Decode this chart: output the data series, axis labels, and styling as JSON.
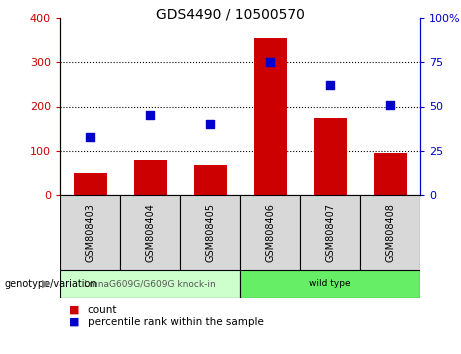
{
  "title": "GDS4490 / 10500570",
  "samples": [
    "GSM808403",
    "GSM808404",
    "GSM808405",
    "GSM808406",
    "GSM808407",
    "GSM808408"
  ],
  "counts": [
    50,
    80,
    68,
    355,
    175,
    95
  ],
  "percentile_ranks": [
    33,
    45,
    40,
    75,
    62,
    51
  ],
  "left_ylim": [
    0,
    400
  ],
  "right_ylim": [
    0,
    100
  ],
  "left_yticks": [
    0,
    100,
    200,
    300,
    400
  ],
  "right_yticks": [
    0,
    25,
    50,
    75,
    100
  ],
  "right_yticklabels": [
    "0",
    "25",
    "50",
    "75",
    "100%"
  ],
  "bar_color": "#cc0000",
  "point_color": "#0000cc",
  "groups": [
    {
      "label": "LmnaG609G/G609G knock-in",
      "indices": [
        0,
        1,
        2
      ],
      "color": "#ccffcc",
      "text_color": "#555555"
    },
    {
      "label": "wild type",
      "indices": [
        3,
        4,
        5
      ],
      "color": "#66ee66",
      "text_color": "#000000"
    }
  ],
  "genotype_label": "genotype/variation",
  "legend_count": "count",
  "legend_pct": "percentile rank within the sample",
  "sample_box_color": "#d8d8d8",
  "background_color": "#ffffff"
}
